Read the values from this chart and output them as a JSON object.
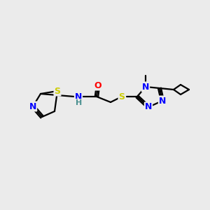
{
  "bg_color": "#ebebeb",
  "bond_color": "#000000",
  "atom_colors": {
    "S": "#cccc00",
    "N": "#0000ff",
    "O": "#ff0000",
    "H": "#4a9090",
    "C": "#000000"
  },
  "figsize": [
    3.0,
    3.0
  ],
  "dpi": 100
}
